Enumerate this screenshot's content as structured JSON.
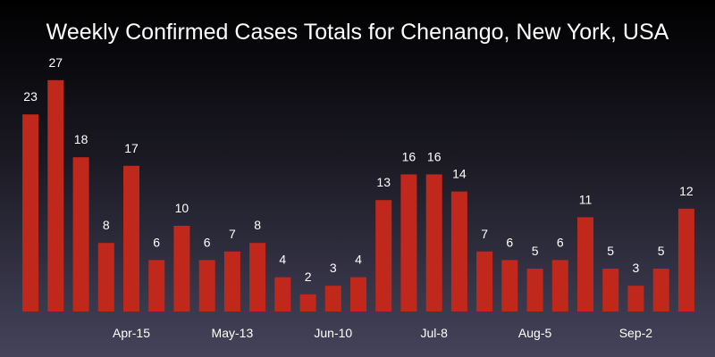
{
  "chart_data": {
    "type": "bar",
    "title": "Weekly Confirmed Cases Totals for Chenango, New York, USA",
    "xlabel": "",
    "ylabel": "",
    "values": [
      23,
      27,
      18,
      8,
      17,
      6,
      10,
      6,
      7,
      8,
      4,
      2,
      3,
      4,
      13,
      16,
      16,
      14,
      7,
      6,
      5,
      6,
      11,
      5,
      3,
      5,
      12
    ],
    "x_ticks": [
      {
        "label": "Apr-15",
        "index": 4
      },
      {
        "label": "May-13",
        "index": 8
      },
      {
        "label": "Jun-10",
        "index": 12
      },
      {
        "label": "Jul-8",
        "index": 16
      },
      {
        "label": "Aug-5",
        "index": 20
      },
      {
        "label": "Sep-2",
        "index": 24
      }
    ],
    "ylim": [
      0,
      27
    ],
    "grid": false,
    "legend": "none",
    "colors": {
      "bar": "#c0281c",
      "text": "#ffffff",
      "background_top": "#000000",
      "background_bottom": "#45435a"
    }
  }
}
